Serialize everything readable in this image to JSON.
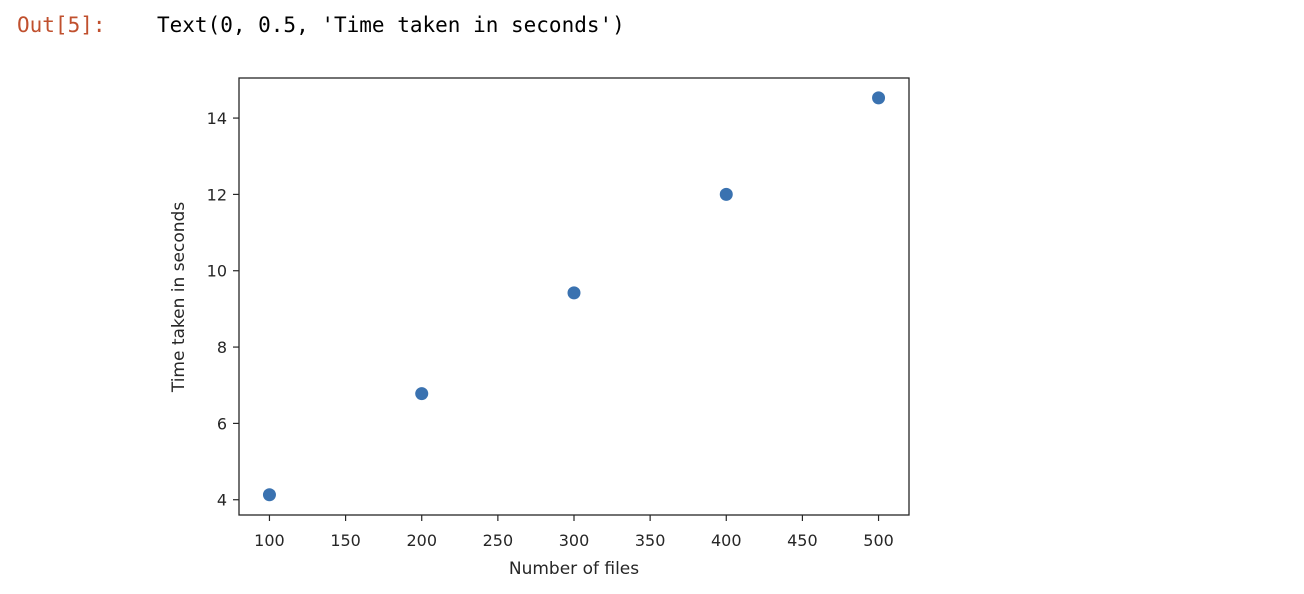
{
  "output": {
    "prompt": "Out[5]:",
    "text": "Text(0, 0.5, 'Time taken in seconds')"
  },
  "colors": {
    "marker": "#3a72b0",
    "prompt": "#c0502e",
    "axes": "#262626"
  },
  "chart_data": {
    "type": "scatter",
    "x": [
      100,
      200,
      300,
      400,
      500
    ],
    "y": [
      4.13,
      6.78,
      9.42,
      12.0,
      14.53
    ],
    "title": "",
    "xlabel": "Number of files",
    "ylabel": "Time taken in seconds",
    "xlim": [
      80,
      520
    ],
    "ylim": [
      3.6,
      15.05
    ],
    "xticks": [
      100,
      150,
      200,
      250,
      300,
      350,
      400,
      450,
      500
    ],
    "yticks": [
      4,
      6,
      8,
      10,
      12,
      14
    ],
    "grid": false,
    "legend": false
  }
}
